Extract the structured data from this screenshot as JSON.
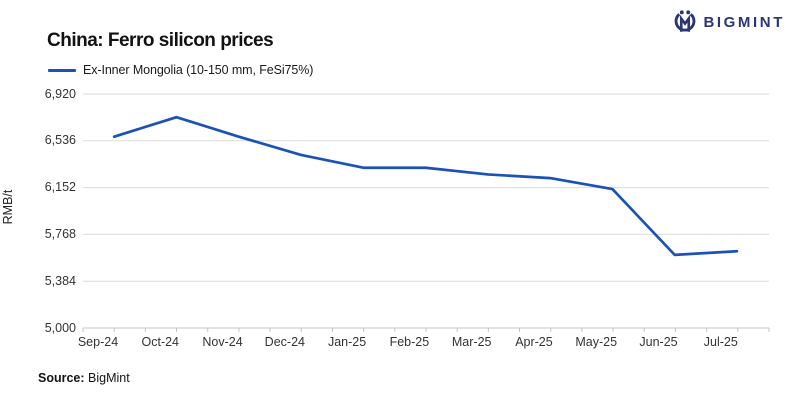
{
  "header": {
    "title": "China: Ferro silicon prices",
    "logo_text": "BIGMINT"
  },
  "legend": {
    "label": "Ex-Inner Mongolia (10-150 mm, FeSi75%)"
  },
  "axes": {
    "y_title": "RMB/t",
    "ytick_labels": [
      "6,920",
      "6,536",
      "6,152",
      "5,768",
      "5,384",
      "5,000"
    ]
  },
  "source": {
    "prefix": "Source:",
    "name": " BigMint"
  },
  "colors": {
    "line": "#1A52B5",
    "logo_navy": "#2B3674",
    "grid": "#DBDBDB",
    "axis": "#C4C4C4"
  },
  "chart_data": {
    "type": "line",
    "title": "China: Ferro silicon prices",
    "xlabel": "",
    "ylabel": "RMB/t",
    "categories": [
      "Sep-24",
      "Oct-24",
      "Nov-24",
      "Dec-24",
      "Jan-25",
      "Feb-25",
      "Mar-25",
      "Apr-25",
      "May-25",
      "Jun-25",
      "Jul-25"
    ],
    "series": [
      {
        "name": "Ex-Inner Mongolia (10-150 mm, FeSi75%)",
        "values": [
          6570,
          6730,
          6570,
          6420,
          6315,
          6315,
          6260,
          6230,
          6140,
          5600,
          5630
        ]
      }
    ],
    "ylim": [
      5000,
      6920
    ],
    "yticks": [
      6920,
      6536,
      6152,
      5768,
      5384,
      5000
    ],
    "grid": true,
    "legend_position": "top-left",
    "source": "BigMint"
  }
}
